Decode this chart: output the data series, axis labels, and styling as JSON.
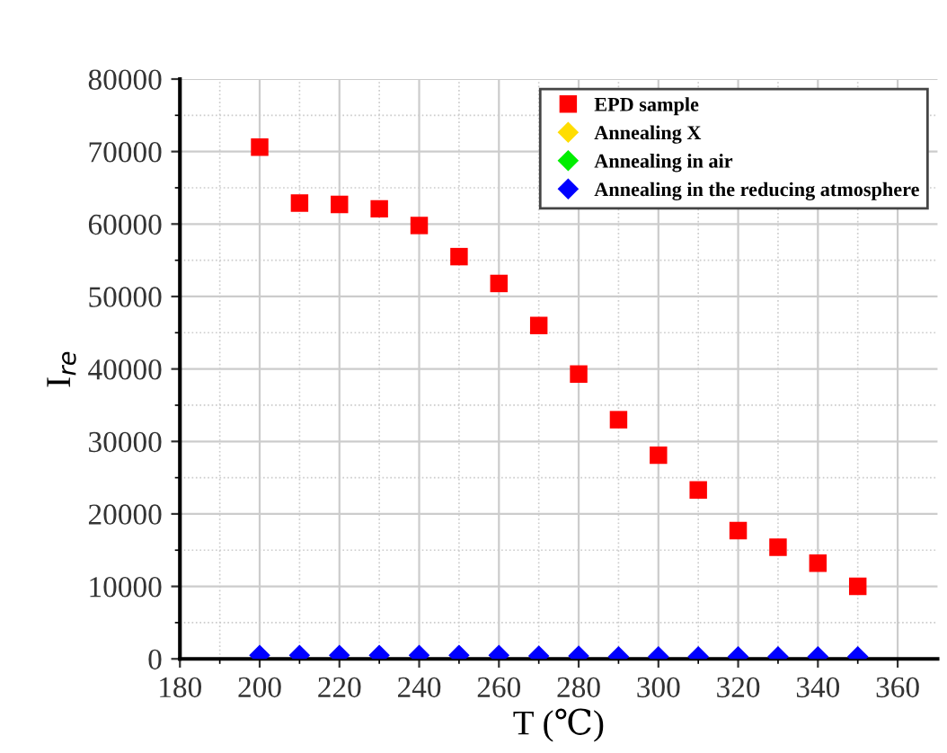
{
  "chart_data": {
    "type": "scatter",
    "xlabel": "T (℃)",
    "ylabel": "I$_{re}$",
    "x": [
      200,
      210,
      220,
      230,
      240,
      250,
      260,
      270,
      280,
      290,
      300,
      310,
      320,
      330,
      340,
      350
    ],
    "series": [
      {
        "name": "EPD sample",
        "color": "#ff0000",
        "marker": "square",
        "values": [
          70600,
          62900,
          62700,
          62100,
          59800,
          55500,
          51800,
          46000,
          39300,
          33000,
          28100,
          23300,
          17700,
          15400,
          13200,
          10000
        ]
      },
      {
        "name": "Annealing X",
        "color": "#ffdd00",
        "marker": "diamond",
        "values": [
          null,
          null,
          null,
          null,
          null,
          null,
          null,
          null,
          null,
          null,
          null,
          null,
          null,
          null,
          null,
          null
        ]
      },
      {
        "name": "Annealing in air",
        "color": "#00ee00",
        "marker": "diamond",
        "values": [
          null,
          null,
          null,
          null,
          null,
          null,
          null,
          null,
          null,
          null,
          null,
          null,
          null,
          null,
          null,
          null
        ]
      },
      {
        "name": "Annealing in the reducing atmosphere",
        "color": "#0000ff",
        "marker": "diamond",
        "values": [
          500,
          500,
          500,
          500,
          500,
          500,
          500,
          400,
          400,
          300,
          300,
          300,
          300,
          300,
          300,
          300
        ]
      }
    ],
    "xlim": [
      180,
      370
    ],
    "xticks": [
      180,
      200,
      220,
      240,
      260,
      280,
      300,
      320,
      340,
      360
    ],
    "ylim": [
      0,
      80000
    ],
    "yticks": [
      0,
      10000,
      20000,
      30000,
      40000,
      50000,
      60000,
      70000,
      80000
    ],
    "grid": true,
    "legend": "top right"
  }
}
